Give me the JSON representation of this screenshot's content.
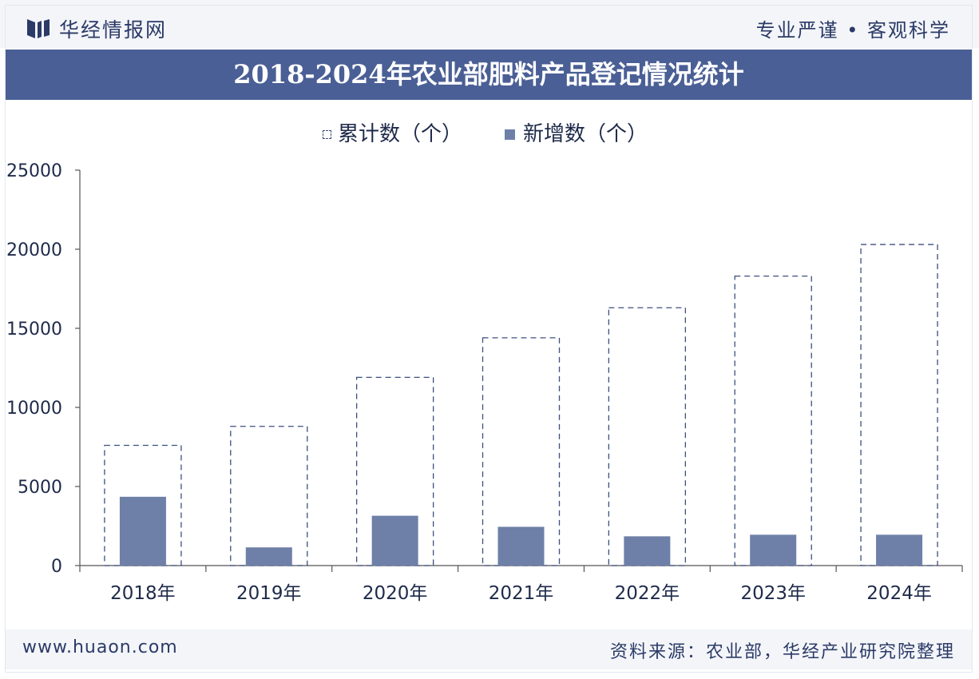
{
  "header": {
    "brand": "华经情报网",
    "slogan": "专业严谨 • 客观科学"
  },
  "title": "2018-2024年农业部肥料产品登记情况统计",
  "footer": {
    "url": "www.huaon.com",
    "source": "资料来源：农业部，华经产业研究院整理"
  },
  "colors": {
    "header_bg": "#f3f5f9",
    "title_bg": "#4a5f95",
    "bar_fill": "#6e80a8",
    "dashed_outline": "#3c4f7f"
  },
  "chart_data": {
    "type": "bar",
    "categories": [
      "2018年",
      "2019年",
      "2020年",
      "2021年",
      "2022年",
      "2023年",
      "2024年"
    ],
    "series": [
      {
        "name": "累计数（个）",
        "style": "dashed-outline",
        "values": [
          7600,
          8800,
          11900,
          14400,
          16300,
          18300,
          20300
        ]
      },
      {
        "name": "新增数（个）",
        "style": "solid",
        "values": [
          4350,
          1150,
          3150,
          2450,
          1850,
          1950,
          1950
        ]
      }
    ],
    "ylim": [
      0,
      25000
    ],
    "yticks": [
      "25000",
      "20000",
      "15000",
      "10000",
      "5000",
      "0"
    ],
    "grid": false,
    "legend_position": "top-center"
  }
}
